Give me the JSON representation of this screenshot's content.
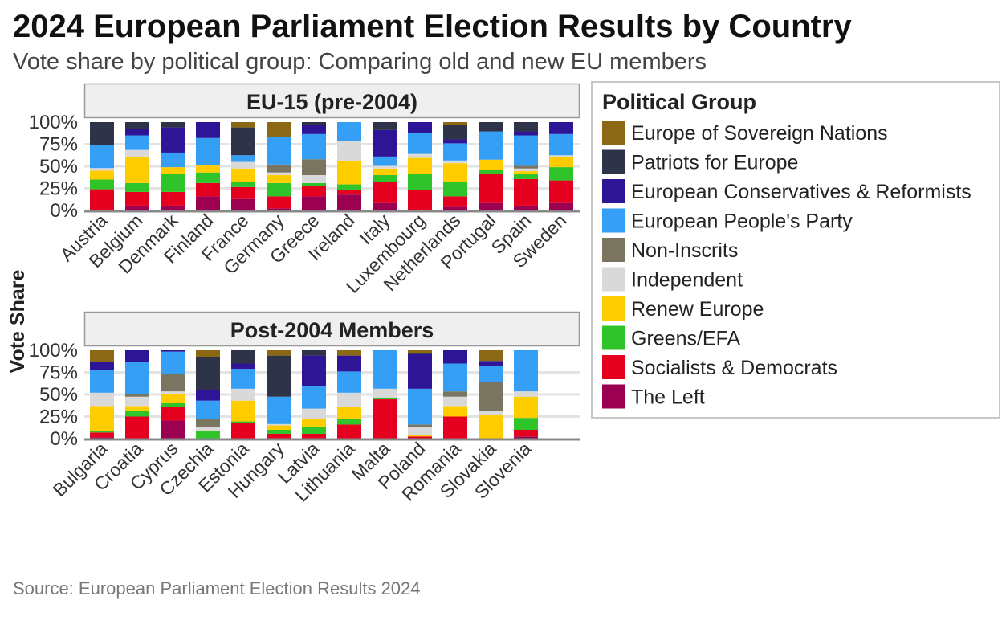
{
  "chart_data": {
    "type": "bar",
    "stacked": true,
    "title": "2024 European Parliament Election Results by Country",
    "subtitle": "Vote share by political group: Comparing old and new EU members",
    "ylabel": "Vote Share",
    "xlabel": "",
    "ylim": [
      0,
      100
    ],
    "yticks": [
      "0%",
      "25%",
      "50%",
      "75%",
      "100%"
    ],
    "caption": "Source: European Parliament Election Results 2024",
    "grid": true,
    "legend": {
      "title": "Political Group",
      "placement": "right",
      "entries": [
        {
          "name": "Europe of Sovereign Nations",
          "color": "#8B6914"
        },
        {
          "name": "Patriots for Europe",
          "color": "#2E3347"
        },
        {
          "name": "European Conservatives & Reformists",
          "color": "#2E1596"
        },
        {
          "name": "European People's Party",
          "color": "#349FF5"
        },
        {
          "name": "Non-Inscrits",
          "color": "#7A7560"
        },
        {
          "name": "Independent",
          "color": "#D9D9D9"
        },
        {
          "name": "Renew Europe",
          "color": "#FFCC00"
        },
        {
          "name": "Greens/EFA",
          "color": "#2FC52A"
        },
        {
          "name": "Socialists & Democrats",
          "color": "#E6001F"
        },
        {
          "name": "The Left",
          "color": "#9C0050"
        }
      ]
    },
    "stack_order_bottom_to_top": [
      "The Left",
      "Socialists & Democrats",
      "Greens/EFA",
      "Renew Europe",
      "Independent",
      "Non-Inscrits",
      "European People's Party",
      "European Conservatives & Reformists",
      "Patriots for Europe",
      "Europe of Sovereign Nations"
    ],
    "facets": [
      {
        "label": "EU-15 (pre-2004)",
        "categories": [
          "Austria",
          "Belgium",
          "Denmark",
          "Finland",
          "France",
          "Germany",
          "Greece",
          "Ireland",
          "Italy",
          "Luxembourg",
          "Netherlands",
          "Portugal",
          "Spain",
          "Sweden"
        ],
        "values": {
          "The Left": [
            0,
            5.5,
            5.5,
            16,
            13,
            2.5,
            16,
            18,
            8.5,
            0,
            4,
            8.5,
            5.5,
            8.5
          ],
          "Socialists & Democrats": [
            24,
            15.5,
            15.5,
            15,
            13.5,
            13.5,
            12,
            5.5,
            24,
            23.5,
            12,
            33,
            30,
            25.5
          ],
          "Greens/EFA": [
            11,
            10,
            20.5,
            12,
            6,
            15,
            3,
            6,
            7.5,
            18,
            16.5,
            4.5,
            6,
            15
          ],
          "Renew Europe": [
            10,
            30,
            7.5,
            8.5,
            15,
            9,
            0,
            27,
            7.5,
            18,
            21,
            11.5,
            3,
            12
          ],
          "Independent": [
            3,
            7.5,
            0,
            0,
            7.5,
            3,
            9,
            22.5,
            3,
            4.5,
            3,
            0,
            3,
            1.5
          ],
          "Non-Inscrits": [
            0,
            0,
            0,
            0,
            0,
            9,
            18,
            0,
            0,
            0,
            0,
            0,
            3,
            0
          ],
          "European People's Party": [
            26,
            16.5,
            16.5,
            30.5,
            7.5,
            31.5,
            28.5,
            21,
            10.5,
            24,
            19.5,
            32,
            34.5,
            24
          ],
          "European Conservatives & Reformists": [
            0,
            7.5,
            28.5,
            18,
            0,
            0,
            10.5,
            0,
            30,
            12,
            4.5,
            0,
            4.5,
            13.5
          ],
          "Patriots for Europe": [
            26,
            7.5,
            6,
            0,
            31.5,
            0,
            3,
            0,
            9,
            0,
            16.5,
            10.5,
            10.5,
            0
          ],
          "Europe of Sovereign Nations": [
            0,
            0,
            0,
            0,
            6,
            16.5,
            0,
            0,
            0,
            0,
            3,
            0,
            0,
            0
          ]
        }
      },
      {
        "label": "Post-2004 Members",
        "categories": [
          "Bulgaria",
          "Croatia",
          "Cyprus",
          "Czechia",
          "Estonia",
          "Hungary",
          "Latvia",
          "Lithuania",
          "Malta",
          "Poland",
          "Romania",
          "Slovakia",
          "Slovenia"
        ],
        "values": {
          "The Left": [
            1.5,
            0,
            20.5,
            0,
            0,
            0,
            0,
            0,
            0,
            0,
            0,
            0,
            2.5
          ],
          "Socialists & Democrats": [
            5.5,
            25,
            15,
            0,
            18,
            5.5,
            5.5,
            16,
            44.5,
            2.5,
            25,
            0,
            7.5
          ],
          "Greens/EFA": [
            1.5,
            6,
            4.5,
            8.5,
            1.5,
            4.5,
            7.5,
            6,
            1.5,
            0,
            0,
            0,
            13.5
          ],
          "Renew Europe": [
            28.5,
            6,
            10.5,
            0,
            23.5,
            5,
            9,
            13.5,
            0,
            1.5,
            12,
            26.5,
            24
          ],
          "Independent": [
            15,
            10.5,
            3,
            4.5,
            13.5,
            1.5,
            12,
            16.5,
            10.5,
            9,
            10.5,
            4.5,
            6
          ],
          "Non-Inscrits": [
            0,
            3,
            19.5,
            9,
            0,
            0,
            0,
            0,
            0,
            3,
            6,
            33,
            0
          ],
          "European People's Party": [
            25.5,
            36,
            25.5,
            21,
            22.5,
            31,
            25.5,
            24,
            43.5,
            40.5,
            31.5,
            18,
            46.5
          ],
          "European Conservatives & Reformists": [
            9,
            13.5,
            1.5,
            12,
            6,
            0,
            34.5,
            18,
            0,
            39,
            15,
            6,
            0
          ],
          "Patriots for Europe": [
            0,
            0,
            0,
            37.5,
            15,
            46.5,
            6,
            0,
            0,
            1.5,
            0,
            0,
            0
          ],
          "Europe of Sovereign Nations": [
            13.5,
            0,
            0,
            7.5,
            0,
            6,
            0,
            6,
            0,
            3,
            0,
            12,
            0
          ]
        }
      }
    ]
  }
}
